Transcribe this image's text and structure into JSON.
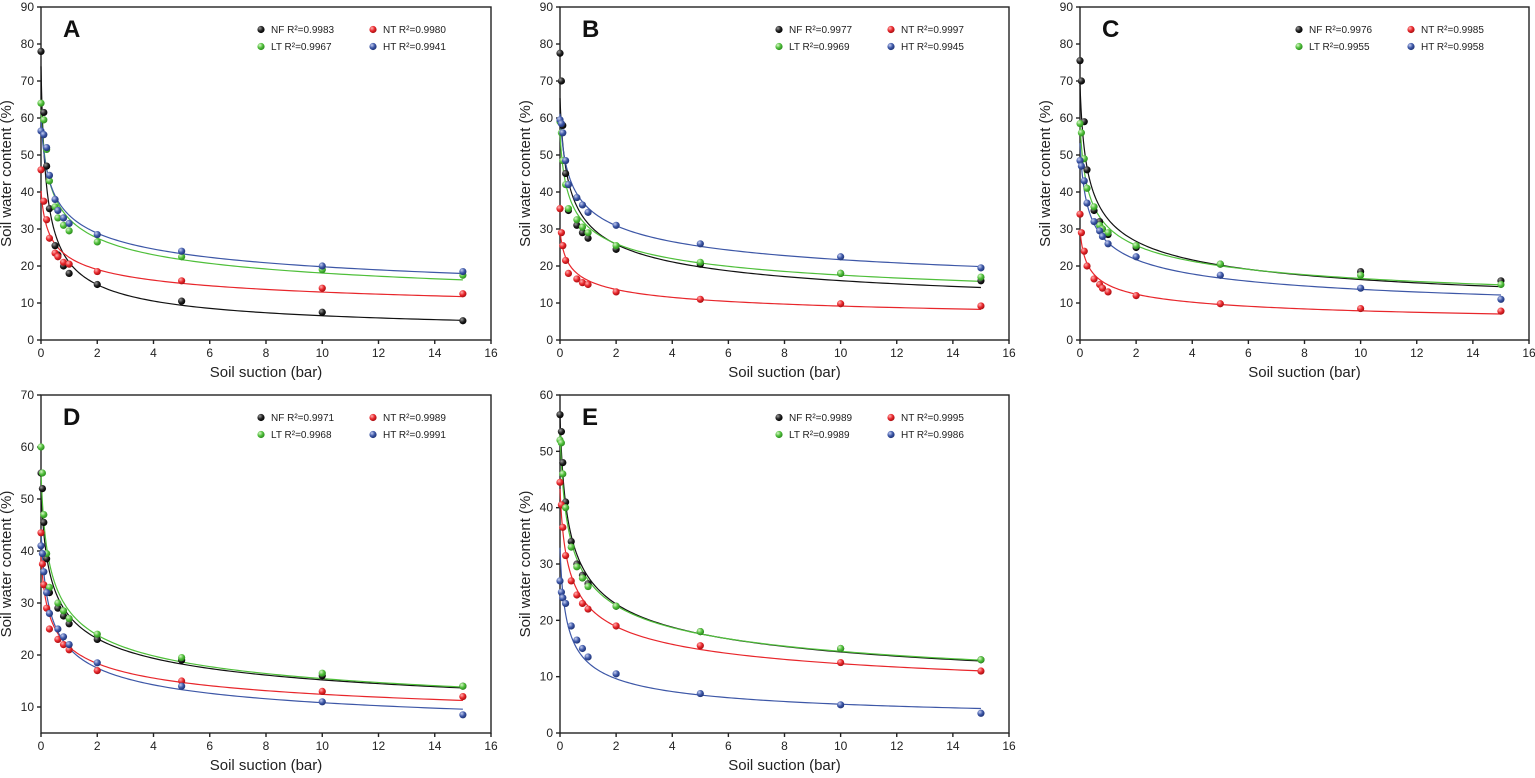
{
  "figure": {
    "series_colors": {
      "NF": "#111111",
      "NT": "#e8262b",
      "LT": "#4fbf3a",
      "HT": "#3d57a7"
    }
  },
  "chart_data": [
    {
      "type": "scatter",
      "panel": "A",
      "xlabel": "Soil suction (bar)",
      "ylabel": "Soil water content (%)",
      "xlim": [
        0,
        16
      ],
      "ylim": [
        0,
        90
      ],
      "xticks": [
        "0",
        "2",
        "4",
        "6",
        "8",
        "10",
        "12",
        "14",
        "16"
      ],
      "yticks": [
        "0",
        "10",
        "20",
        "30",
        "40",
        "50",
        "60",
        "70",
        "80",
        "90"
      ],
      "grid": false,
      "legend_position": "top-right",
      "legend": [
        {
          "key": "NF",
          "label": "NF R²=0.9983"
        },
        {
          "key": "NT",
          "label": "NT R²=0.9980"
        },
        {
          "key": "LT",
          "label": "LT R²=0.9967"
        },
        {
          "key": "HT",
          "label": "HT R²=0.9941"
        }
      ],
      "series": [
        {
          "name": "NF",
          "x": [
            0,
            0.1,
            0.2,
            0.3,
            0.5,
            0.6,
            0.8,
            1,
            2,
            5,
            10,
            15
          ],
          "y": [
            78,
            61.5,
            47,
            35.5,
            25.5,
            23,
            20,
            18,
            15,
            10.5,
            7.5,
            5.2
          ]
        },
        {
          "name": "NT",
          "x": [
            0,
            0.1,
            0.2,
            0.3,
            0.5,
            0.6,
            0.8,
            1,
            2,
            5,
            10,
            15
          ],
          "y": [
            46,
            37.5,
            32.5,
            27.5,
            23.5,
            22.5,
            21,
            20.5,
            18.5,
            16,
            14,
            12.5
          ]
        },
        {
          "name": "LT",
          "x": [
            0,
            0.1,
            0.2,
            0.3,
            0.5,
            0.6,
            0.8,
            1,
            2,
            5,
            10,
            15
          ],
          "y": [
            64,
            59.5,
            51.5,
            43,
            36,
            33,
            31,
            29.5,
            26.5,
            22.5,
            19,
            17.5
          ]
        },
        {
          "name": "HT",
          "x": [
            0,
            0.1,
            0.2,
            0.3,
            0.5,
            0.6,
            0.8,
            1,
            2,
            5,
            10,
            15
          ],
          "y": [
            56.5,
            55.5,
            52,
            44.5,
            38,
            35,
            33,
            31.5,
            28.5,
            24,
            20,
            18.5
          ]
        }
      ]
    },
    {
      "type": "scatter",
      "panel": "B",
      "xlabel": "Soil suction (bar)",
      "ylabel": "Soil water content (%)",
      "xlim": [
        0,
        16
      ],
      "ylim": [
        0,
        90
      ],
      "xticks": [
        "0",
        "2",
        "4",
        "6",
        "8",
        "10",
        "12",
        "14",
        "16"
      ],
      "yticks": [
        "0",
        "10",
        "20",
        "30",
        "40",
        "50",
        "60",
        "70",
        "80",
        "90"
      ],
      "grid": false,
      "legend_position": "top-right",
      "legend": [
        {
          "key": "NF",
          "label": "NF R²=0.9977"
        },
        {
          "key": "NT",
          "label": "NT R²=0.9997"
        },
        {
          "key": "LT",
          "label": "LT R²=0.9969"
        },
        {
          "key": "HT",
          "label": "HT R²=0.9945"
        }
      ],
      "series": [
        {
          "name": "NF",
          "x": [
            0,
            0.05,
            0.1,
            0.2,
            0.3,
            0.6,
            0.8,
            1,
            2,
            5,
            10,
            15
          ],
          "y": [
            77.5,
            70,
            58,
            45,
            35,
            31,
            29,
            27.5,
            24.5,
            20.5,
            18,
            16
          ]
        },
        {
          "name": "NT",
          "x": [
            0,
            0.05,
            0.1,
            0.2,
            0.3,
            0.6,
            0.8,
            1,
            2,
            5,
            10,
            15
          ],
          "y": [
            35.5,
            29,
            25.5,
            21.5,
            18,
            16.5,
            15.5,
            15,
            13,
            11,
            9.8,
            9.2
          ]
        },
        {
          "name": "LT",
          "x": [
            0,
            0.05,
            0.1,
            0.2,
            0.3,
            0.6,
            0.8,
            1,
            2,
            5,
            10,
            15
          ],
          "y": [
            59,
            56,
            48.5,
            42,
            35.5,
            32.5,
            30.5,
            29,
            25.5,
            21,
            18,
            17
          ]
        },
        {
          "name": "HT",
          "x": [
            0,
            0.05,
            0.1,
            0.2,
            0.3,
            0.6,
            0.8,
            1,
            2,
            5,
            10,
            15
          ],
          "y": [
            59.5,
            58.5,
            56,
            48.5,
            42,
            38.5,
            36.5,
            34.5,
            31,
            26,
            22.5,
            19.5
          ]
        }
      ]
    },
    {
      "type": "scatter",
      "panel": "C",
      "xlabel": "Soil suction (bar)",
      "ylabel": "Soil water content (%)",
      "xlim": [
        0,
        16
      ],
      "ylim": [
        0,
        90
      ],
      "xticks": [
        "0",
        "2",
        "4",
        "6",
        "8",
        "10",
        "12",
        "14",
        "16"
      ],
      "yticks": [
        "0",
        "10",
        "20",
        "30",
        "40",
        "50",
        "60",
        "70",
        "80",
        "90"
      ],
      "grid": false,
      "legend_position": "top-right",
      "legend": [
        {
          "key": "NF",
          "label": "NF R²=0.9976"
        },
        {
          "key": "NT",
          "label": "NT R²=0.9985"
        },
        {
          "key": "LT",
          "label": "LT R²=0.9955"
        },
        {
          "key": "HT",
          "label": "HT R²=0.9958"
        }
      ],
      "series": [
        {
          "name": "NF",
          "x": [
            0,
            0.05,
            0.15,
            0.25,
            0.5,
            0.7,
            0.8,
            1,
            2,
            5,
            10,
            15
          ],
          "y": [
            75.5,
            70,
            59,
            46,
            35,
            32,
            30,
            28.5,
            25,
            20.5,
            18.5,
            16
          ]
        },
        {
          "name": "NT",
          "x": [
            0,
            0.05,
            0.15,
            0.25,
            0.5,
            0.7,
            0.8,
            1,
            2,
            5,
            10,
            15
          ],
          "y": [
            34,
            29,
            24,
            20,
            16.5,
            15,
            14,
            13,
            12,
            9.8,
            8.5,
            7.8
          ]
        },
        {
          "name": "LT",
          "x": [
            0,
            0.05,
            0.15,
            0.25,
            0.5,
            0.7,
            0.8,
            1,
            2,
            5,
            10,
            15
          ],
          "y": [
            58.5,
            56,
            49,
            41,
            36,
            31,
            30,
            29,
            25.5,
            20.5,
            17.5,
            15
          ]
        },
        {
          "name": "HT",
          "x": [
            0,
            0.05,
            0.15,
            0.25,
            0.5,
            0.7,
            0.8,
            1,
            2,
            5,
            10,
            15
          ],
          "y": [
            48.5,
            47,
            43,
            37,
            32,
            29.5,
            28,
            26,
            22.5,
            17.5,
            14,
            11
          ]
        }
      ]
    },
    {
      "type": "scatter",
      "panel": "D",
      "xlabel": "Soil suction (bar)",
      "ylabel": "Soil water content (%)",
      "xlim": [
        0,
        16
      ],
      "ylim": [
        5,
        70
      ],
      "xticks": [
        "0",
        "2",
        "4",
        "6",
        "8",
        "10",
        "12",
        "14",
        "16"
      ],
      "yticks": [
        "10",
        "20",
        "30",
        "40",
        "50",
        "60",
        "70"
      ],
      "grid": false,
      "legend_position": "top-right",
      "legend": [
        {
          "key": "NF",
          "label": "NF R²=0.9971"
        },
        {
          "key": "NT",
          "label": "NT R²=0.9989"
        },
        {
          "key": "LT",
          "label": "LT R²=0.9968"
        },
        {
          "key": "HT",
          "label": "HT R²=0.9991"
        }
      ],
      "series": [
        {
          "name": "NF",
          "x": [
            0,
            0.05,
            0.1,
            0.2,
            0.3,
            0.6,
            0.8,
            1,
            2,
            5,
            10,
            15
          ],
          "y": [
            55,
            52,
            45.5,
            38.5,
            32,
            29,
            27.5,
            26,
            23,
            19,
            16,
            14
          ]
        },
        {
          "name": "NT",
          "x": [
            0,
            0.05,
            0.1,
            0.2,
            0.3,
            0.6,
            0.8,
            1,
            2,
            5,
            10,
            15
          ],
          "y": [
            43.5,
            37.5,
            33.5,
            29,
            25,
            23,
            22,
            21,
            17,
            15,
            13,
            12
          ]
        },
        {
          "name": "LT",
          "x": [
            0,
            0.05,
            0.1,
            0.2,
            0.3,
            0.6,
            0.8,
            1,
            2,
            5,
            10,
            15
          ],
          "y": [
            60,
            55,
            47,
            39.5,
            33,
            30,
            28.5,
            27,
            24,
            19.5,
            16.5,
            14
          ]
        },
        {
          "name": "HT",
          "x": [
            0,
            0.05,
            0.1,
            0.2,
            0.3,
            0.6,
            0.8,
            1,
            2,
            5,
            10,
            15
          ],
          "y": [
            41,
            39.5,
            36,
            32,
            28,
            25,
            23.5,
            22,
            18.5,
            14,
            11,
            8.5
          ]
        }
      ]
    },
    {
      "type": "scatter",
      "panel": "E",
      "xlabel": "Soil suction (bar)",
      "ylabel": "Soil water content (%)",
      "xlim": [
        0,
        16
      ],
      "ylim": [
        0,
        60
      ],
      "xticks": [
        "0",
        "2",
        "4",
        "6",
        "8",
        "10",
        "12",
        "14",
        "16"
      ],
      "yticks": [
        "0",
        "10",
        "20",
        "30",
        "40",
        "50",
        "60"
      ],
      "grid": false,
      "legend_position": "top-right",
      "legend": [
        {
          "key": "NF",
          "label": "NF R²=0.9989"
        },
        {
          "key": "NT",
          "label": "NT R²=0.9995"
        },
        {
          "key": "LT",
          "label": "LT R²=0.9989"
        },
        {
          "key": "HT",
          "label": "HT R²=0.9986"
        }
      ],
      "series": [
        {
          "name": "NF",
          "x": [
            0,
            0.05,
            0.1,
            0.2,
            0.4,
            0.6,
            0.8,
            1,
            2,
            5,
            10,
            15
          ],
          "y": [
            56.5,
            53.5,
            48,
            41,
            34,
            30,
            28,
            26.5,
            22.5,
            18,
            15,
            13
          ]
        },
        {
          "name": "NT",
          "x": [
            0,
            0.05,
            0.1,
            0.2,
            0.4,
            0.6,
            0.8,
            1,
            2,
            5,
            10,
            15
          ],
          "y": [
            44.5,
            40.5,
            36.5,
            31.5,
            27,
            24.5,
            23,
            22,
            19,
            15.5,
            12.5,
            11
          ]
        },
        {
          "name": "LT",
          "x": [
            0,
            0.05,
            0.1,
            0.2,
            0.4,
            0.6,
            0.8,
            1,
            2,
            5,
            10,
            15
          ],
          "y": [
            52,
            51.5,
            46,
            40,
            33,
            29.5,
            27.5,
            26,
            22.5,
            18,
            15,
            13
          ]
        },
        {
          "name": "HT",
          "x": [
            0,
            0.05,
            0.1,
            0.2,
            0.4,
            0.6,
            0.8,
            1,
            2,
            5,
            10,
            15
          ],
          "y": [
            27,
            25,
            24,
            23,
            19,
            16.5,
            15,
            13.5,
            10.5,
            7,
            5,
            3.5
          ]
        }
      ]
    }
  ]
}
